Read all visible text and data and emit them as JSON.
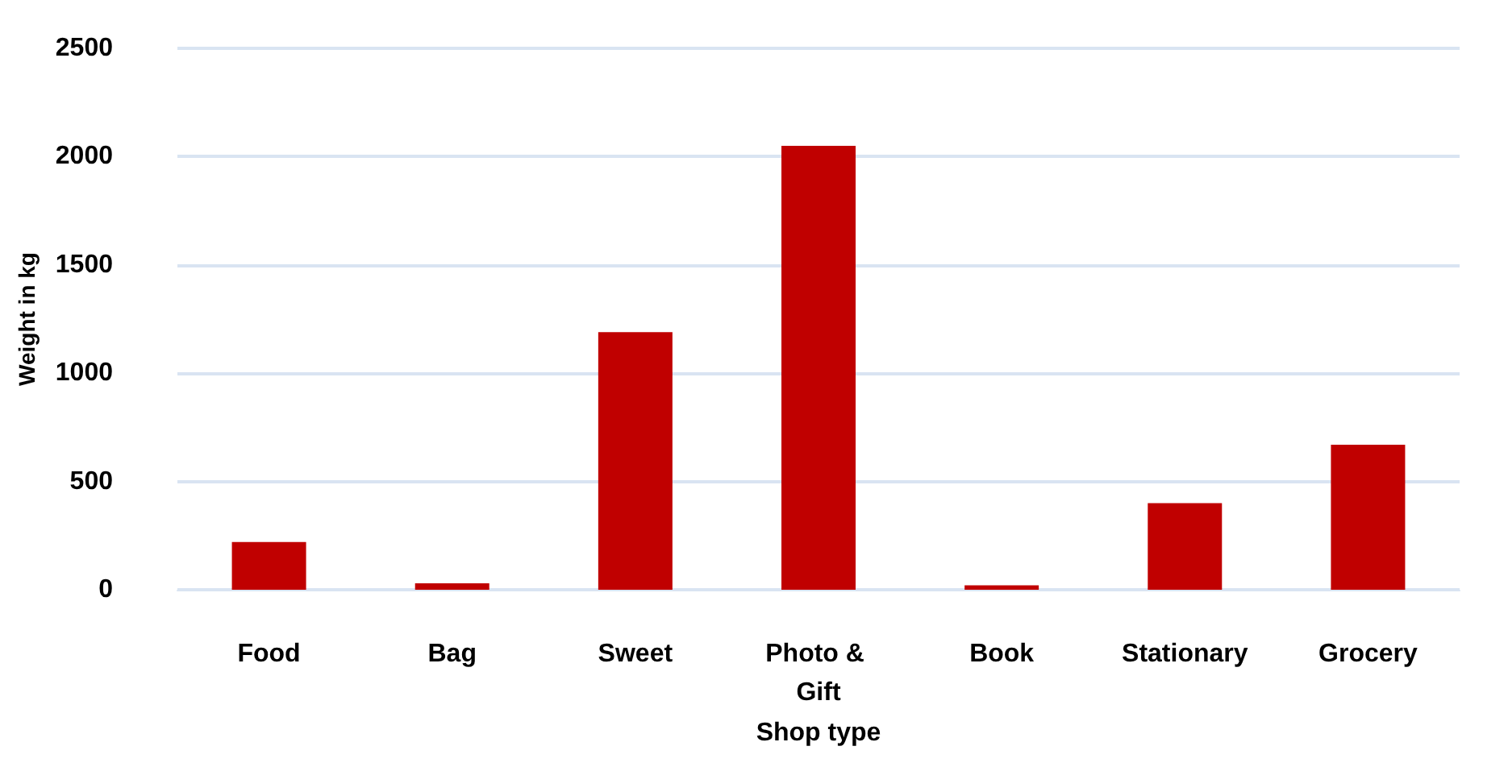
{
  "chart_data": {
    "type": "bar",
    "xlabel": "Shop type",
    "ylabel": "Weight in kg",
    "categories": [
      "Food",
      "Bag",
      "Sweet",
      "Photo & Gift",
      "Book",
      "Stationary",
      "Grocery"
    ],
    "values": [
      220,
      30,
      1190,
      2050,
      20,
      400,
      670
    ],
    "color": "#c00000",
    "ylim": [
      0,
      2500
    ],
    "yticks": [
      0,
      500,
      1000,
      1500,
      2000,
      2500
    ],
    "grid": "y"
  }
}
